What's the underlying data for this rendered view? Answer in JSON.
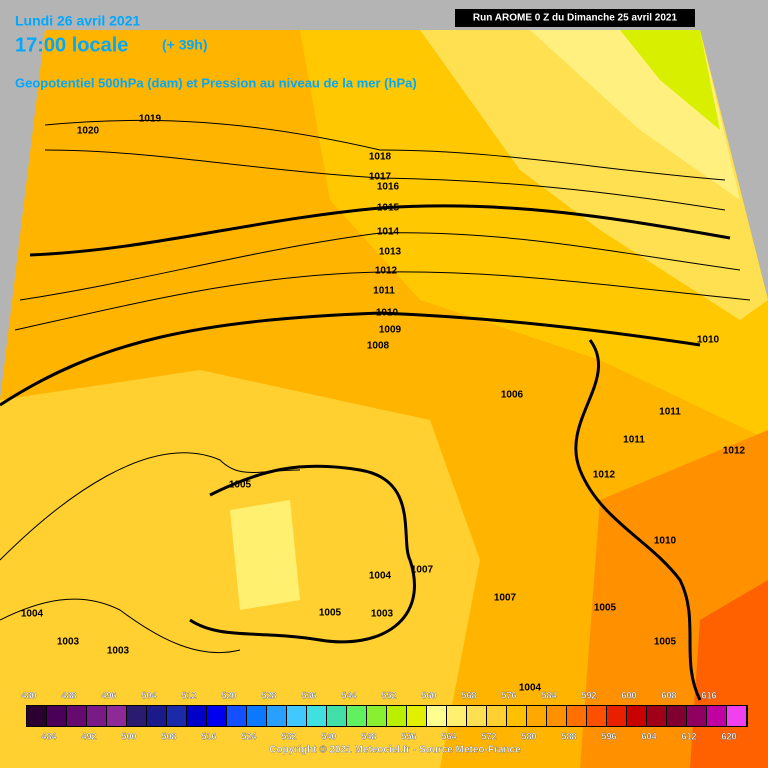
{
  "header": {
    "run": "Run AROME 0 Z du Dimanche 25 avril 2021",
    "date": "Lundi 26 avril 2021",
    "time": "17:00 locale",
    "lead": "(+ 39h)",
    "field": "Geopotentiel 500hPa (dam) et Pression au niveau de la mer (hPa)"
  },
  "isobar_labels": [
    1020,
    1019,
    1018,
    1017,
    1016,
    1015,
    1014,
    1013,
    1012,
    1011,
    1010,
    1009,
    1008,
    1006,
    1005,
    1004,
    1007,
    1003,
    1005,
    1004,
    1003,
    1003,
    1007,
    1005,
    1005,
    1012,
    1011,
    1011,
    1012,
    1010,
    1010,
    1004
  ],
  "legend": {
    "values": [
      480,
      484,
      488,
      492,
      496,
      500,
      504,
      508,
      512,
      516,
      520,
      524,
      528,
      532,
      536,
      540,
      544,
      548,
      552,
      556,
      560,
      564,
      568,
      572,
      576,
      580,
      584,
      588,
      592,
      596,
      600,
      604,
      608,
      612,
      616,
      620
    ],
    "colors": [
      "#2a0030",
      "#4a0058",
      "#660a70",
      "#7a1a86",
      "#8e2a98",
      "#2a1a70",
      "#1a1a8a",
      "#1a2aa8",
      "#0000c8",
      "#0000f0",
      "#1450ff",
      "#0a78ff",
      "#28a0ff",
      "#40c8ff",
      "#40e0e0",
      "#40e0a8",
      "#60f060",
      "#88f030",
      "#b8f000",
      "#e0f000",
      "#ffff90",
      "#fff070",
      "#ffe050",
      "#ffd030",
      "#ffc000",
      "#ffa800",
      "#ff9000",
      "#ff7000",
      "#ff5000",
      "#e82000",
      "#c80000",
      "#a00018",
      "#800030",
      "#900060",
      "#c000a0",
      "#f040f0"
    ]
  },
  "copyright": "Copyright © 2021 Meteociel.fr - Source Meteo-France"
}
